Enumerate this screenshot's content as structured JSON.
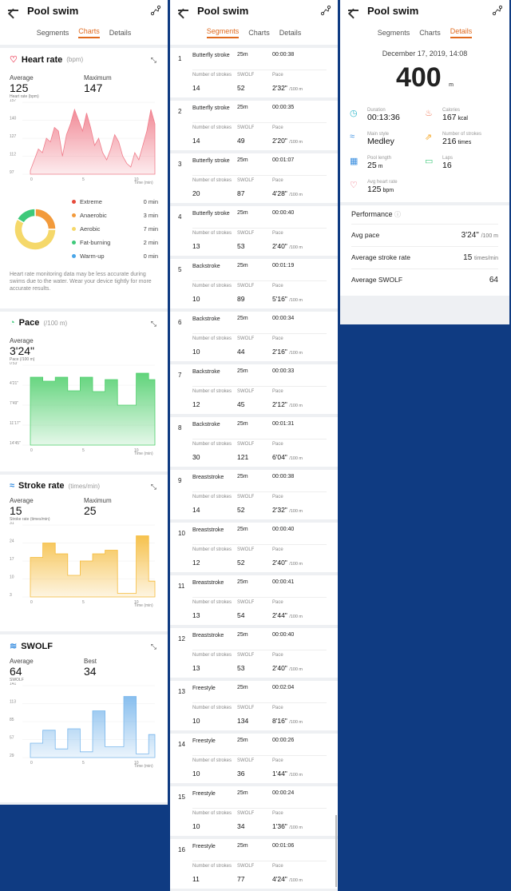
{
  "app": {
    "title": "Pool swim"
  },
  "tabs": [
    "Segments",
    "Charts",
    "Details"
  ],
  "charts": {
    "heart": {
      "title": "Heart rate",
      "unit": "(bpm)",
      "avg_label": "Average",
      "avg": "125",
      "max_label": "Maximum",
      "max": "147",
      "caption": "Heart rate (bpm)",
      "yticks": [
        "157",
        "140",
        "127",
        "112",
        "97"
      ],
      "xticks": [
        "0",
        "5",
        "10"
      ],
      "xlabel": "Time (min)",
      "color": "#f07e8c",
      "zones": [
        {
          "name": "Extreme",
          "value": "0 min",
          "color": "#e64a3b"
        },
        {
          "name": "Anaerobic",
          "value": "3 min",
          "color": "#f29a3b"
        },
        {
          "name": "Aerobic",
          "value": "7 min",
          "color": "#f5d86a"
        },
        {
          "name": "Fat-burning",
          "value": "2 min",
          "color": "#3ec97a"
        },
        {
          "name": "Warm-up",
          "value": "0 min",
          "color": "#4aa6e8"
        }
      ],
      "note": "Heart rate monitoring data may be less accurate during swims due to the water. Wear your device tightly for more accurate results."
    },
    "pace": {
      "title": "Pace",
      "unit": "(/100 m)",
      "avg_label": "Average",
      "avg": "3'24\"",
      "caption": "Pace (/100 m)",
      "yticks": [
        "0'53\"",
        "4'21\"",
        "7'49\"",
        "11'17\"",
        "14'45\""
      ],
      "xticks": [
        "0",
        "5",
        "10"
      ],
      "xlabel": "Time (min)",
      "color": "#4fcf6c"
    },
    "stroke": {
      "title": "Stroke rate",
      "unit": "(times/min)",
      "avg_label": "Average",
      "avg": "15",
      "max_label": "Maximum",
      "max": "25",
      "caption": "Stroke rate (times/min)",
      "yticks": [
        "31",
        "24",
        "17",
        "10",
        "3"
      ],
      "xticks": [
        "0",
        "5",
        "10"
      ],
      "xlabel": "Time (min)",
      "color": "#f5bb3a"
    },
    "swolf": {
      "title": "SWOLF",
      "avg_label": "Average",
      "avg": "64",
      "best_label": "Best",
      "best": "34",
      "caption": "SWOLF",
      "yticks": [
        "141",
        "113",
        "85",
        "57",
        "29"
      ],
      "xticks": [
        "0",
        "5",
        "10"
      ],
      "xlabel": "Time (min)",
      "color": "#7ab7ec"
    }
  },
  "segments": [
    {
      "n": "1",
      "style": "Butterfly stroke",
      "dist": "25m",
      "time": "00:00:38",
      "strokes": "14",
      "swolf": "52",
      "pace": "2'32\""
    },
    {
      "n": "2",
      "style": "Butterfly stroke",
      "dist": "25m",
      "time": "00:00:35",
      "strokes": "14",
      "swolf": "49",
      "pace": "2'20\""
    },
    {
      "n": "3",
      "style": "Butterfly stroke",
      "dist": "25m",
      "time": "00:01:07",
      "strokes": "20",
      "swolf": "87",
      "pace": "4'28\""
    },
    {
      "n": "4",
      "style": "Butterfly stroke",
      "dist": "25m",
      "time": "00:00:40",
      "strokes": "13",
      "swolf": "53",
      "pace": "2'40\""
    },
    {
      "n": "5",
      "style": "Backstroke",
      "dist": "25m",
      "time": "00:01:19",
      "strokes": "10",
      "swolf": "89",
      "pace": "5'16\""
    },
    {
      "n": "6",
      "style": "Backstroke",
      "dist": "25m",
      "time": "00:00:34",
      "strokes": "10",
      "swolf": "44",
      "pace": "2'16\""
    },
    {
      "n": "7",
      "style": "Backstroke",
      "dist": "25m",
      "time": "00:00:33",
      "strokes": "12",
      "swolf": "45",
      "pace": "2'12\""
    },
    {
      "n": "8",
      "style": "Backstroke",
      "dist": "25m",
      "time": "00:01:31",
      "strokes": "30",
      "swolf": "121",
      "pace": "6'04\""
    },
    {
      "n": "9",
      "style": "Breaststroke",
      "dist": "25m",
      "time": "00:00:38",
      "strokes": "14",
      "swolf": "52",
      "pace": "2'32\""
    },
    {
      "n": "10",
      "style": "Breaststroke",
      "dist": "25m",
      "time": "00:00:40",
      "strokes": "12",
      "swolf": "52",
      "pace": "2'40\""
    },
    {
      "n": "11",
      "style": "Breaststroke",
      "dist": "25m",
      "time": "00:00:41",
      "strokes": "13",
      "swolf": "54",
      "pace": "2'44\""
    },
    {
      "n": "12",
      "style": "Breaststroke",
      "dist": "25m",
      "time": "00:00:40",
      "strokes": "13",
      "swolf": "53",
      "pace": "2'40\""
    },
    {
      "n": "13",
      "style": "Freestyle",
      "dist": "25m",
      "time": "00:02:04",
      "strokes": "10",
      "swolf": "134",
      "pace": "8'16\""
    },
    {
      "n": "14",
      "style": "Freestyle",
      "dist": "25m",
      "time": "00:00:26",
      "strokes": "10",
      "swolf": "36",
      "pace": "1'44\""
    },
    {
      "n": "15",
      "style": "Freestyle",
      "dist": "25m",
      "time": "00:00:24",
      "strokes": "10",
      "swolf": "34",
      "pace": "1'36\""
    },
    {
      "n": "16",
      "style": "Freestyle",
      "dist": "25m",
      "time": "00:01:06",
      "strokes": "11",
      "swolf": "77",
      "pace": "4'24\""
    }
  ],
  "segment_labels": {
    "strokes": "Number of strokes",
    "swolf": "SWOLF",
    "pace": "Pace",
    "pace_unit": "/100 m"
  },
  "details": {
    "date": "December 17, 2019, 14:08",
    "distance": "400",
    "distance_unit": "m",
    "items": [
      {
        "label": "Duration",
        "value": "00:13:36",
        "unit": "",
        "icon": "clock-icon",
        "color": "#2bb5c9"
      },
      {
        "label": "Calories",
        "value": "167",
        "unit": "kcal",
        "icon": "flame-icon",
        "color": "#f07a5a"
      },
      {
        "label": "Main style",
        "value": "Medley",
        "unit": "",
        "icon": "swim-icon",
        "color": "#3b8fe0"
      },
      {
        "label": "Number of strokes",
        "value": "216",
        "unit": "times",
        "icon": "stroke-icon",
        "color": "#f5a623"
      },
      {
        "label": "Pool length",
        "value": "25",
        "unit": "m",
        "icon": "pool-icon",
        "color": "#3b8fe0"
      },
      {
        "label": "Laps",
        "value": "16",
        "unit": "",
        "icon": "laps-icon",
        "color": "#3ec97a"
      },
      {
        "label": "Avg heart rate",
        "value": "125",
        "unit": "bpm",
        "icon": "heart-icon",
        "color": "#ef5a6f"
      }
    ],
    "performance_title": "Performance",
    "performance": [
      {
        "label": "Avg pace",
        "value": "3'24\"",
        "unit": "/100 m"
      },
      {
        "label": "Average stroke rate",
        "value": "15",
        "unit": "times/min"
      },
      {
        "label": "Average SWOLF",
        "value": "64",
        "unit": ""
      }
    ]
  }
}
